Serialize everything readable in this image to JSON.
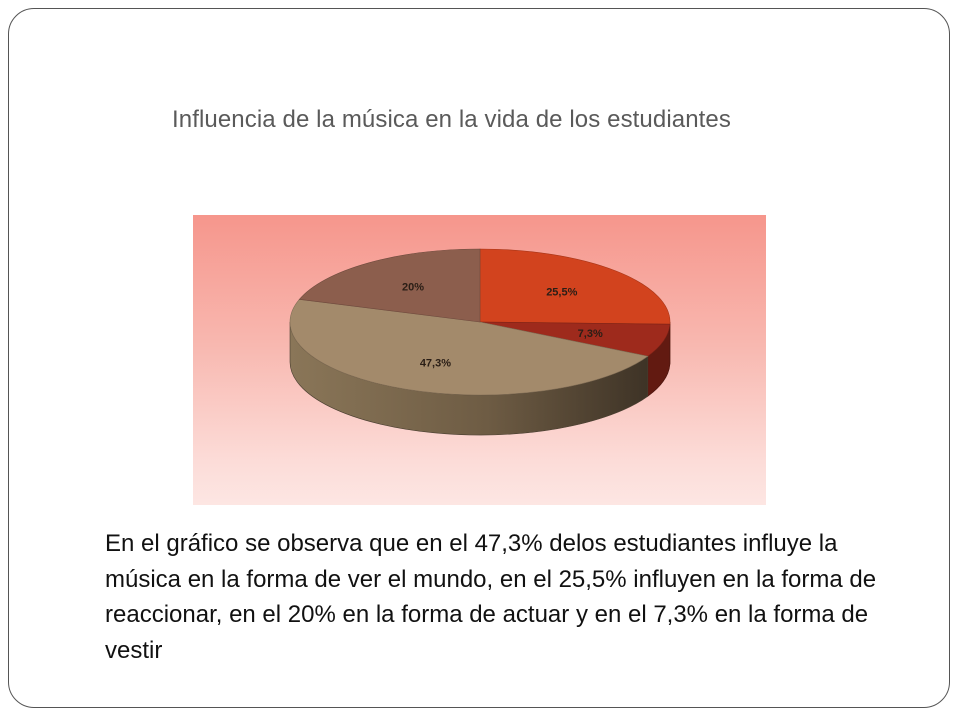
{
  "slide": {
    "title": "Influencia de la música en la vida de los estudiantes",
    "body": "En el gráfico se observa que en el 47,3% delos estudiantes influye la música en la forma de ver el mundo, en el 25,5% influyen en la forma de reaccionar, en el 20% en la forma de actuar y en el 7,3% en la forma de vestir"
  },
  "chart_data": {
    "type": "pie",
    "style": "3d",
    "grid": false,
    "legend": "none",
    "slices": [
      {
        "label": "25,5%",
        "value": 25.5,
        "color": "#d2431e"
      },
      {
        "label": "7,3%",
        "value": 7.3,
        "color": "#9e2a1c"
      },
      {
        "label": "47,3%",
        "value": 47.3,
        "color": "#a38a6b"
      },
      {
        "label": "20%",
        "value": 20,
        "color": "#8c5e4d"
      }
    ]
  }
}
